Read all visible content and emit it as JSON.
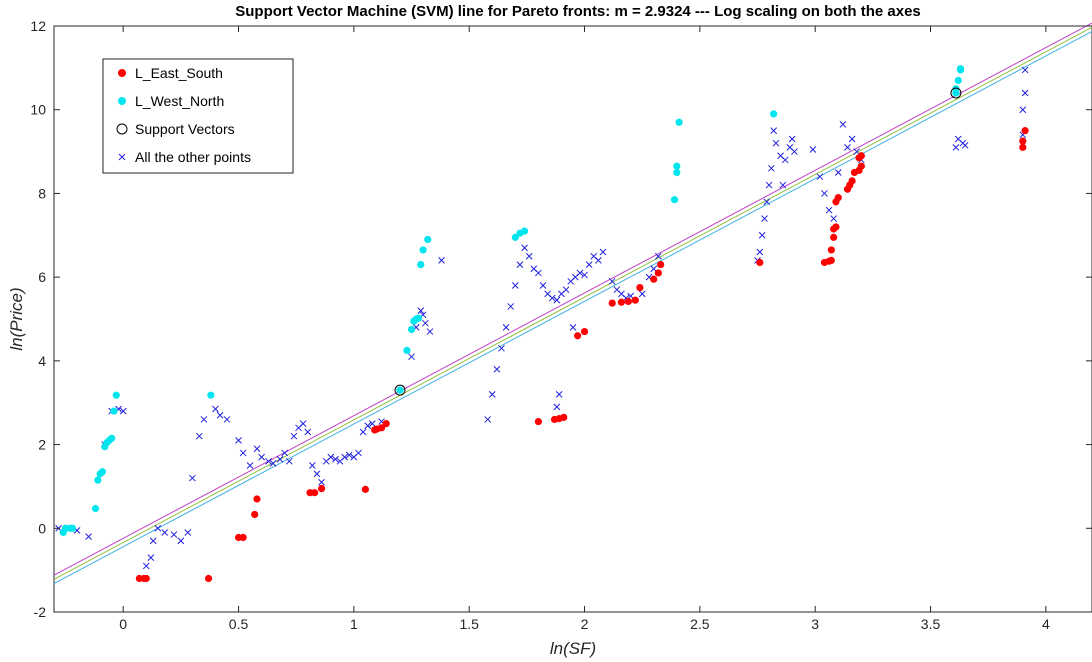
{
  "chart_data": {
    "type": "scatter",
    "title": "Support Vector Machine (SVM) line for Pareto fronts: m = 2.9324 --- Log scaling on both the axes",
    "xlabel": "ln(SF)",
    "ylabel": "ln(Price)",
    "xlim": [
      -0.3,
      4.2
    ],
    "ylim": [
      -2,
      12
    ],
    "xticks": [
      0,
      0.5,
      1,
      1.5,
      2,
      2.5,
      3,
      3.5,
      4
    ],
    "yticks": [
      -2,
      0,
      2,
      4,
      6,
      8,
      10,
      12
    ],
    "xtick_labels": [
      "0",
      "0.5",
      "1",
      "1.5",
      "2",
      "2.5",
      "3",
      "3.5",
      "4"
    ],
    "ytick_labels": [
      "-2",
      "0",
      "2",
      "4",
      "6",
      "8",
      "10",
      "12"
    ],
    "grid": false,
    "legend_position": "top-left",
    "colors": {
      "east_south": "#ff0000",
      "west_north": "#00e5ee",
      "support_edge": "#000000",
      "other": "#2020e0",
      "svm_line_upper": "#c040c0",
      "svm_line_mid": "#90c040",
      "svm_line_lower": "#40b0e0"
    },
    "lines": [
      {
        "name": "svm-margin-upper",
        "x": [
          -0.3,
          4.2
        ],
        "y": [
          -1.12,
          12.07
        ]
      },
      {
        "name": "svm-boundary",
        "x": [
          -0.3,
          4.2
        ],
        "y": [
          -1.22,
          11.97
        ]
      },
      {
        "name": "svm-margin-lower",
        "x": [
          -0.3,
          4.2
        ],
        "y": [
          -1.32,
          11.87
        ]
      }
    ],
    "series": [
      {
        "name": "L_East_South",
        "marker": "filled-circle",
        "points": [
          [
            0.07,
            -1.2
          ],
          [
            0.09,
            -1.2
          ],
          [
            0.1,
            -1.2
          ],
          [
            0.37,
            -1.2
          ],
          [
            0.5,
            -0.22
          ],
          [
            0.52,
            -0.22
          ],
          [
            0.57,
            0.33
          ],
          [
            0.58,
            0.7
          ],
          [
            0.81,
            0.85
          ],
          [
            0.83,
            0.85
          ],
          [
            0.86,
            0.95
          ],
          [
            1.05,
            0.93
          ],
          [
            1.09,
            2.35
          ],
          [
            1.1,
            2.37
          ],
          [
            1.12,
            2.4
          ],
          [
            1.14,
            2.5
          ],
          [
            1.8,
            2.55
          ],
          [
            1.87,
            2.6
          ],
          [
            1.89,
            2.62
          ],
          [
            1.91,
            2.65
          ],
          [
            1.97,
            4.6
          ],
          [
            2.0,
            4.7
          ],
          [
            2.12,
            5.38
          ],
          [
            2.16,
            5.4
          ],
          [
            2.19,
            5.42
          ],
          [
            2.22,
            5.45
          ],
          [
            2.24,
            5.75
          ],
          [
            2.3,
            5.95
          ],
          [
            2.32,
            6.1
          ],
          [
            2.33,
            6.3
          ],
          [
            2.76,
            6.35
          ],
          [
            3.04,
            6.35
          ],
          [
            3.06,
            6.38
          ],
          [
            3.07,
            6.4
          ],
          [
            3.07,
            6.65
          ],
          [
            3.08,
            6.95
          ],
          [
            3.08,
            7.15
          ],
          [
            3.09,
            7.2
          ],
          [
            3.09,
            7.8
          ],
          [
            3.1,
            7.9
          ],
          [
            3.14,
            8.1
          ],
          [
            3.15,
            8.2
          ],
          [
            3.16,
            8.3
          ],
          [
            3.17,
            8.5
          ],
          [
            3.19,
            8.55
          ],
          [
            3.2,
            8.65
          ],
          [
            3.19,
            8.85
          ],
          [
            3.2,
            8.9
          ],
          [
            3.9,
            9.1
          ],
          [
            3.9,
            9.25
          ],
          [
            3.91,
            9.5
          ]
        ]
      },
      {
        "name": "L_West_North",
        "marker": "filled-circle",
        "points": [
          [
            -0.31,
            -0.9
          ],
          [
            -0.26,
            -0.1
          ],
          [
            -0.25,
            0.0
          ],
          [
            -0.23,
            0.0
          ],
          [
            -0.22,
            0.0
          ],
          [
            -0.12,
            0.47
          ],
          [
            -0.11,
            1.15
          ],
          [
            -0.1,
            1.3
          ],
          [
            -0.09,
            1.35
          ],
          [
            -0.08,
            1.95
          ],
          [
            -0.07,
            2.05
          ],
          [
            -0.06,
            2.1
          ],
          [
            -0.05,
            2.15
          ],
          [
            -0.04,
            2.8
          ],
          [
            -0.03,
            3.18
          ],
          [
            0.38,
            3.18
          ],
          [
            1.2,
            3.3
          ],
          [
            1.23,
            4.25
          ],
          [
            1.25,
            4.75
          ],
          [
            1.26,
            4.95
          ],
          [
            1.27,
            5.0
          ],
          [
            1.28,
            5.02
          ],
          [
            1.29,
            6.3
          ],
          [
            1.3,
            6.65
          ],
          [
            1.32,
            6.9
          ],
          [
            1.7,
            6.95
          ],
          [
            1.72,
            7.05
          ],
          [
            1.74,
            7.1
          ],
          [
            2.39,
            7.85
          ],
          [
            2.4,
            8.5
          ],
          [
            2.4,
            8.65
          ],
          [
            2.41,
            9.7
          ],
          [
            2.82,
            9.9
          ],
          [
            3.61,
            10.4
          ],
          [
            3.61,
            10.5
          ],
          [
            3.62,
            10.7
          ],
          [
            3.63,
            10.95
          ],
          [
            3.63,
            10.98
          ]
        ]
      },
      {
        "name": "Support Vectors",
        "marker": "open-circle",
        "points": [
          [
            1.2,
            3.3
          ],
          [
            3.61,
            10.4
          ]
        ]
      },
      {
        "name": "All the other points",
        "marker": "x",
        "points": [
          [
            -0.28,
            0.0
          ],
          [
            -0.2,
            -0.05
          ],
          [
            -0.15,
            -0.2
          ],
          [
            -0.08,
            2.0
          ],
          [
            -0.05,
            2.8
          ],
          [
            -0.02,
            2.85
          ],
          [
            0.0,
            2.8
          ],
          [
            0.1,
            -0.9
          ],
          [
            0.12,
            -0.7
          ],
          [
            0.13,
            -0.3
          ],
          [
            0.15,
            0.0
          ],
          [
            0.18,
            -0.1
          ],
          [
            0.22,
            -0.15
          ],
          [
            0.25,
            -0.3
          ],
          [
            0.28,
            -0.1
          ],
          [
            0.3,
            1.2
          ],
          [
            0.33,
            2.2
          ],
          [
            0.35,
            2.6
          ],
          [
            0.4,
            2.85
          ],
          [
            0.42,
            2.7
          ],
          [
            0.45,
            2.6
          ],
          [
            0.5,
            2.1
          ],
          [
            0.52,
            1.8
          ],
          [
            0.55,
            1.5
          ],
          [
            0.58,
            1.9
          ],
          [
            0.6,
            1.7
          ],
          [
            0.63,
            1.6
          ],
          [
            0.65,
            1.55
          ],
          [
            0.68,
            1.65
          ],
          [
            0.7,
            1.8
          ],
          [
            0.72,
            1.6
          ],
          [
            0.74,
            2.2
          ],
          [
            0.76,
            2.4
          ],
          [
            0.78,
            2.5
          ],
          [
            0.8,
            2.3
          ],
          [
            0.82,
            1.5
          ],
          [
            0.84,
            1.3
          ],
          [
            0.86,
            1.1
          ],
          [
            0.88,
            1.6
          ],
          [
            0.9,
            1.7
          ],
          [
            0.92,
            1.65
          ],
          [
            0.94,
            1.6
          ],
          [
            0.96,
            1.7
          ],
          [
            0.98,
            1.75
          ],
          [
            1.0,
            1.7
          ],
          [
            1.02,
            1.8
          ],
          [
            1.04,
            2.3
          ],
          [
            1.06,
            2.45
          ],
          [
            1.08,
            2.5
          ],
          [
            1.12,
            2.55
          ],
          [
            1.25,
            4.1
          ],
          [
            1.27,
            4.8
          ],
          [
            1.29,
            5.2
          ],
          [
            1.3,
            5.1
          ],
          [
            1.31,
            4.9
          ],
          [
            1.33,
            4.7
          ],
          [
            1.38,
            6.4
          ],
          [
            1.58,
            2.6
          ],
          [
            1.6,
            3.2
          ],
          [
            1.62,
            3.8
          ],
          [
            1.64,
            4.3
          ],
          [
            1.66,
            4.8
          ],
          [
            1.68,
            5.3
          ],
          [
            1.7,
            5.8
          ],
          [
            1.72,
            6.3
          ],
          [
            1.74,
            6.7
          ],
          [
            1.76,
            6.5
          ],
          [
            1.78,
            6.2
          ],
          [
            1.8,
            6.1
          ],
          [
            1.82,
            5.8
          ],
          [
            1.84,
            5.6
          ],
          [
            1.86,
            5.5
          ],
          [
            1.88,
            5.45
          ],
          [
            1.9,
            5.6
          ],
          [
            1.92,
            5.7
          ],
          [
            1.94,
            5.9
          ],
          [
            1.96,
            6.0
          ],
          [
            1.98,
            6.1
          ],
          [
            2.0,
            6.05
          ],
          [
            2.02,
            6.3
          ],
          [
            2.04,
            6.5
          ],
          [
            2.06,
            6.4
          ],
          [
            2.08,
            6.6
          ],
          [
            1.95,
            4.8
          ],
          [
            1.88,
            2.9
          ],
          [
            1.89,
            3.2
          ],
          [
            2.12,
            5.9
          ],
          [
            2.14,
            5.7
          ],
          [
            2.16,
            5.6
          ],
          [
            2.18,
            5.5
          ],
          [
            2.2,
            5.55
          ],
          [
            2.25,
            5.6
          ],
          [
            2.28,
            6.0
          ],
          [
            2.3,
            6.2
          ],
          [
            2.32,
            6.5
          ],
          [
            2.75,
            6.4
          ],
          [
            2.76,
            6.6
          ],
          [
            2.77,
            7.0
          ],
          [
            2.78,
            7.4
          ],
          [
            2.79,
            7.8
          ],
          [
            2.8,
            8.2
          ],
          [
            2.81,
            8.6
          ],
          [
            2.82,
            9.5
          ],
          [
            2.83,
            9.2
          ],
          [
            2.85,
            8.9
          ],
          [
            2.87,
            8.8
          ],
          [
            2.89,
            9.1
          ],
          [
            2.91,
            9.0
          ],
          [
            2.86,
            8.2
          ],
          [
            2.9,
            9.3
          ],
          [
            2.99,
            9.05
          ],
          [
            3.02,
            8.4
          ],
          [
            3.04,
            8.0
          ],
          [
            3.06,
            7.6
          ],
          [
            3.08,
            7.4
          ],
          [
            3.1,
            8.5
          ],
          [
            3.12,
            9.65
          ],
          [
            3.14,
            9.1
          ],
          [
            3.16,
            9.3
          ],
          [
            3.18,
            9.0
          ],
          [
            3.2,
            8.8
          ],
          [
            3.61,
            9.1
          ],
          [
            3.62,
            9.3
          ],
          [
            3.64,
            9.2
          ],
          [
            3.65,
            9.15
          ],
          [
            3.9,
            9.4
          ],
          [
            3.9,
            10.0
          ],
          [
            3.91,
            10.4
          ],
          [
            3.91,
            10.95
          ]
        ]
      }
    ]
  }
}
